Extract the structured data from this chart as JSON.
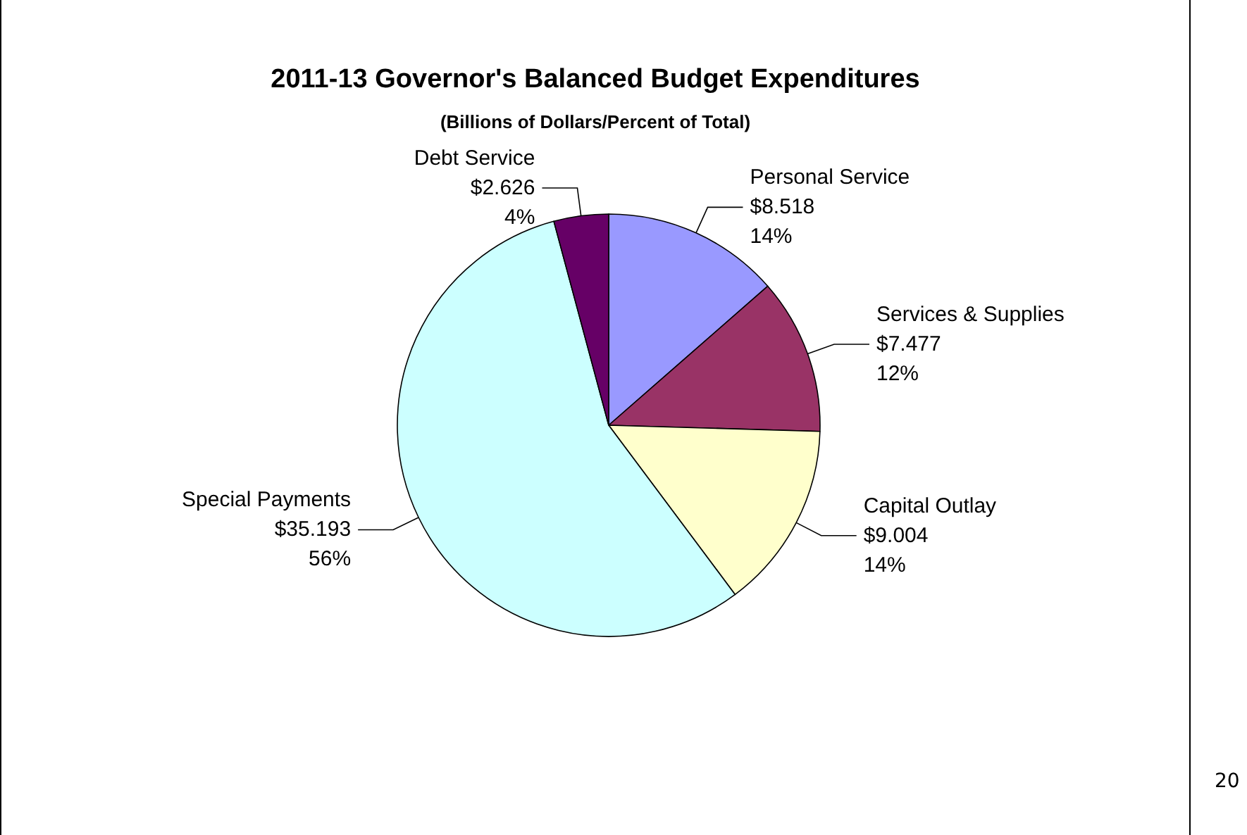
{
  "chart_data": {
    "type": "pie",
    "title": "2011-13 Governor's Balanced Budget Expenditures",
    "subtitle": "(Billions of Dollars/Percent of Total)",
    "categories": [
      "Personal Service",
      "Services & Supplies",
      "Capital Outlay",
      "Special Payments",
      "Debt Service"
    ],
    "values": [
      8.518,
      7.477,
      9.004,
      35.193,
      2.626
    ],
    "value_labels": [
      "$8.518\n14%",
      "$7.477\n12%",
      "$9.004\n14%",
      "$35.193\n56%",
      "$2.626\n4%"
    ],
    "colors": [
      "#9999ff",
      "#993366",
      "#ffffcc",
      "#ccffff",
      "#660066"
    ],
    "annotations": [
      "20"
    ],
    "legend": false
  }
}
